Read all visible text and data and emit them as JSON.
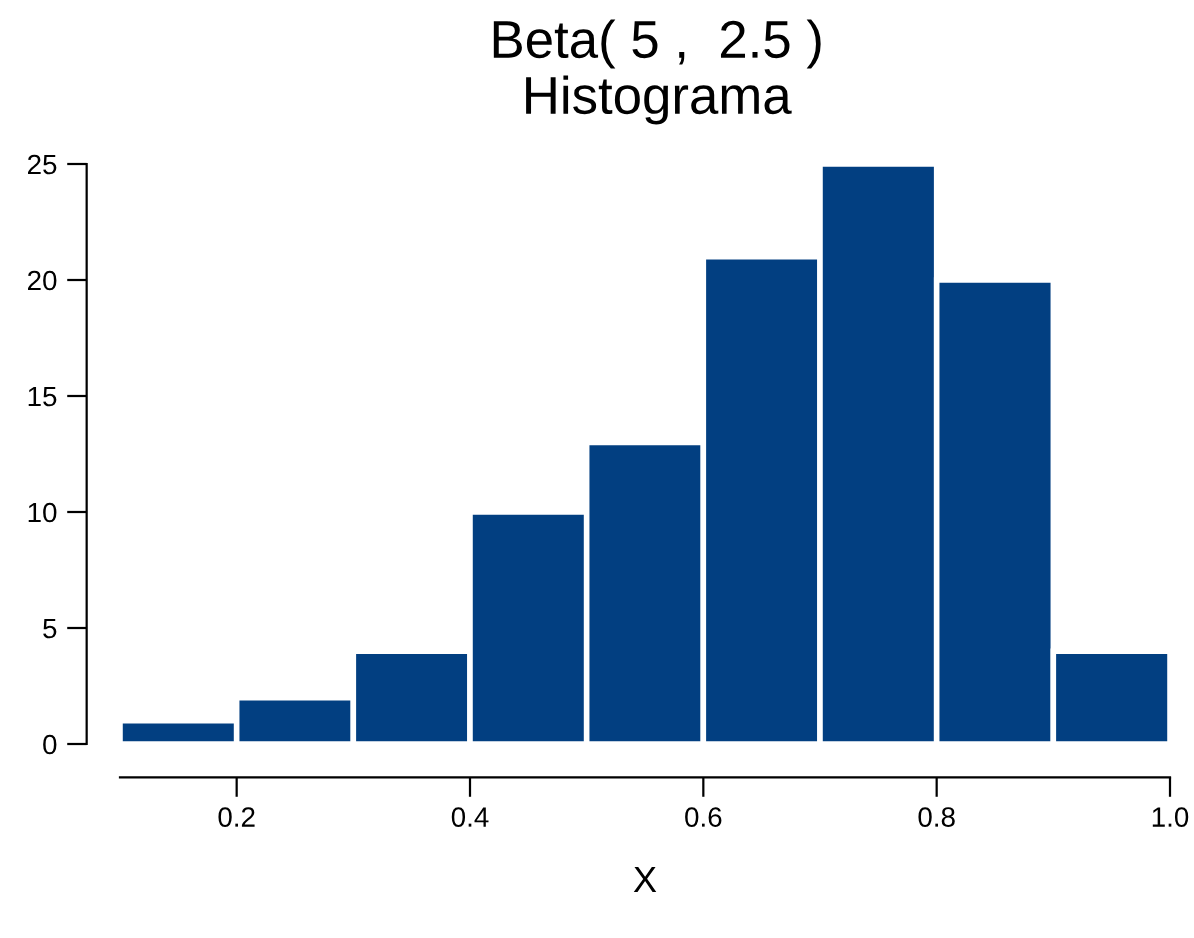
{
  "chart_data": {
    "type": "histogram",
    "title": "Beta( 5 ,  2.5 )",
    "subtitle": "Histograma",
    "xlabel": "X",
    "bins": [
      0.1,
      0.2,
      0.3,
      0.4,
      0.5,
      0.6,
      0.7,
      0.8,
      0.9,
      1.0
    ],
    "values": [
      1,
      2,
      4,
      10,
      13,
      21,
      25,
      20,
      4
    ],
    "color": "#023f81",
    "xlim": [
      0.1,
      1.0
    ],
    "xticks": [
      0.2,
      0.4,
      0.6,
      0.8,
      {
        "value": 1.0,
        "label": "1.0"
      }
    ],
    "ylim": [
      0,
      25
    ],
    "yticks": [
      0,
      5,
      10,
      15,
      20,
      25
    ],
    "grid": false
  }
}
